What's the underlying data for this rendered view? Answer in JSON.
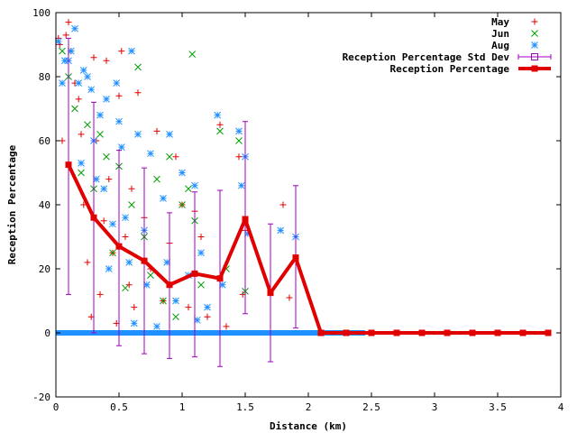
{
  "chart_data": {
    "type": "scatter",
    "xlabel": "Distance (km)",
    "ylabel": "Reception Percentage",
    "xlim": [
      0,
      4
    ],
    "ylim": [
      -20,
      100
    ],
    "x_ticks": [
      0,
      0.5,
      1,
      1.5,
      2,
      2.5,
      3,
      3.5,
      4
    ],
    "y_ticks": [
      -20,
      0,
      20,
      40,
      60,
      80,
      100
    ],
    "legend_position": "top-right",
    "grid": false,
    "series": [
      {
        "name": "May",
        "kind": "scatter",
        "marker": "plus",
        "color": "#e00000",
        "points": [
          [
            0.02,
            92
          ],
          [
            0.03,
            90
          ],
          [
            0.05,
            60
          ],
          [
            0.08,
            93
          ],
          [
            0.1,
            97
          ],
          [
            0.12,
            88
          ],
          [
            0.15,
            78
          ],
          [
            0.18,
            73
          ],
          [
            0.2,
            62
          ],
          [
            0.22,
            40
          ],
          [
            0.25,
            22
          ],
          [
            0.28,
            5
          ],
          [
            0.3,
            86
          ],
          [
            0.32,
            60
          ],
          [
            0.35,
            12
          ],
          [
            0.38,
            35
          ],
          [
            0.4,
            85
          ],
          [
            0.42,
            48
          ],
          [
            0.45,
            25
          ],
          [
            0.48,
            3
          ],
          [
            0.5,
            74
          ],
          [
            0.52,
            88
          ],
          [
            0.55,
            30
          ],
          [
            0.58,
            15
          ],
          [
            0.6,
            45
          ],
          [
            0.62,
            8
          ],
          [
            0.65,
            75
          ],
          [
            0.7,
            36
          ],
          [
            0.75,
            20
          ],
          [
            0.8,
            63
          ],
          [
            0.85,
            10
          ],
          [
            0.9,
            28
          ],
          [
            0.95,
            55
          ],
          [
            1.0,
            40
          ],
          [
            1.05,
            8
          ],
          [
            1.1,
            38
          ],
          [
            1.15,
            30
          ],
          [
            1.2,
            5
          ],
          [
            1.3,
            65
          ],
          [
            1.35,
            2
          ],
          [
            1.45,
            55
          ],
          [
            1.48,
            12
          ],
          [
            1.5,
            32
          ],
          [
            1.8,
            40
          ],
          [
            1.85,
            11
          ]
        ]
      },
      {
        "name": "Jun",
        "kind": "scatter",
        "marker": "cross",
        "color": "#00a000",
        "points": [
          [
            0.05,
            88
          ],
          [
            0.1,
            80
          ],
          [
            0.15,
            70
          ],
          [
            0.2,
            50
          ],
          [
            0.25,
            65
          ],
          [
            0.3,
            45
          ],
          [
            0.35,
            62
          ],
          [
            0.4,
            55
          ],
          [
            0.45,
            25
          ],
          [
            0.5,
            52
          ],
          [
            0.55,
            14
          ],
          [
            0.6,
            40
          ],
          [
            0.65,
            83
          ],
          [
            0.7,
            30
          ],
          [
            0.75,
            18
          ],
          [
            0.8,
            48
          ],
          [
            0.85,
            10
          ],
          [
            0.9,
            55
          ],
          [
            0.95,
            5
          ],
          [
            1.0,
            40
          ],
          [
            1.05,
            45
          ],
          [
            1.08,
            87
          ],
          [
            1.1,
            35
          ],
          [
            1.15,
            15
          ],
          [
            1.3,
            63
          ],
          [
            1.35,
            20
          ],
          [
            1.45,
            60
          ],
          [
            1.5,
            13
          ]
        ]
      },
      {
        "name": "Aug",
        "kind": "scatter",
        "marker": "star",
        "color": "#1e90ff",
        "points": [
          [
            0.02,
            91
          ],
          [
            0.05,
            78
          ],
          [
            0.07,
            85
          ],
          [
            0.1,
            85
          ],
          [
            0.12,
            88
          ],
          [
            0.15,
            95
          ],
          [
            0.18,
            78
          ],
          [
            0.2,
            53
          ],
          [
            0.22,
            82
          ],
          [
            0.25,
            80
          ],
          [
            0.28,
            76
          ],
          [
            0.3,
            60
          ],
          [
            0.32,
            48
          ],
          [
            0.35,
            68
          ],
          [
            0.38,
            45
          ],
          [
            0.4,
            73
          ],
          [
            0.42,
            20
          ],
          [
            0.45,
            34
          ],
          [
            0.48,
            78
          ],
          [
            0.5,
            66
          ],
          [
            0.52,
            58
          ],
          [
            0.55,
            36
          ],
          [
            0.58,
            22
          ],
          [
            0.6,
            88
          ],
          [
            0.62,
            3
          ],
          [
            0.65,
            62
          ],
          [
            0.7,
            32
          ],
          [
            0.72,
            15
          ],
          [
            0.75,
            56
          ],
          [
            0.8,
            2
          ],
          [
            0.85,
            42
          ],
          [
            0.88,
            22
          ],
          [
            0.9,
            62
          ],
          [
            0.95,
            10
          ],
          [
            1.0,
            50
          ],
          [
            1.05,
            18
          ],
          [
            1.1,
            46
          ],
          [
            1.12,
            4
          ],
          [
            1.15,
            25
          ],
          [
            1.2,
            8
          ],
          [
            1.28,
            68
          ],
          [
            1.32,
            15
          ],
          [
            1.45,
            63
          ],
          [
            1.47,
            46
          ],
          [
            1.5,
            55
          ],
          [
            1.52,
            31
          ],
          [
            1.78,
            32
          ],
          [
            1.9,
            30
          ]
        ]
      },
      {
        "name": "Reception Percentage Std Dev",
        "kind": "errorbar",
        "color": "#a000c0",
        "x": [
          0.1,
          0.3,
          0.5,
          0.7,
          0.9,
          1.1,
          1.3,
          1.5,
          1.7,
          1.9
        ],
        "y": [
          52.5,
          36,
          27,
          22.5,
          15,
          18.5,
          17,
          35.5,
          12.5,
          23.5
        ],
        "low": [
          12,
          0,
          -4,
          -6.5,
          -8,
          -7.5,
          -10.5,
          6,
          -9,
          1.5
        ],
        "high": [
          92,
          72,
          57,
          51.5,
          37.5,
          44,
          44.5,
          66,
          34,
          46
        ]
      },
      {
        "name": "Reception Percentage",
        "kind": "line",
        "marker": "square",
        "color": "#e00000",
        "x": [
          0.1,
          0.3,
          0.5,
          0.7,
          0.9,
          1.1,
          1.3,
          1.5,
          1.7,
          1.9,
          2.1,
          2.3,
          2.5,
          2.7,
          2.9,
          3.1,
          3.3,
          3.5,
          3.7,
          3.9
        ],
        "y": [
          52.5,
          36,
          27,
          22.5,
          15,
          18.5,
          17,
          35.5,
          12.5,
          23.5,
          0,
          0,
          0,
          0,
          0,
          0,
          0,
          0,
          0,
          0
        ]
      }
    ],
    "baseline": {
      "color": "#1e90ff",
      "xmin": 0,
      "xmax": 2.45,
      "y": 0
    }
  }
}
